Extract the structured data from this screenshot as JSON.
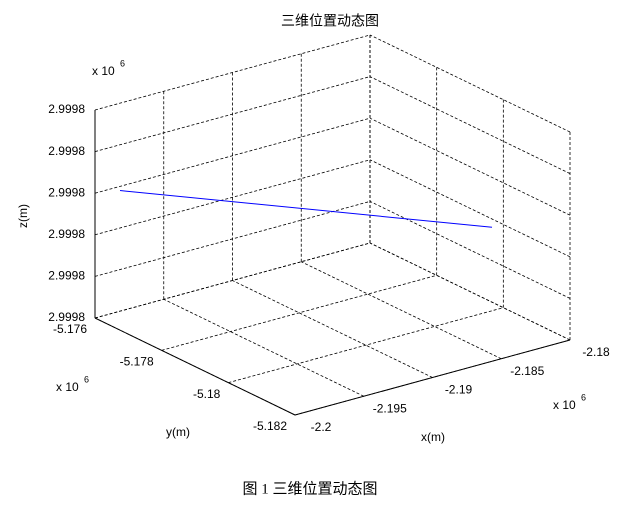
{
  "chart_data": {
    "type": "line3d",
    "title": "三维位置动态图",
    "caption": "图 1 三维位置动态图",
    "xlabel": "x(m)",
    "ylabel": "y(m)",
    "zlabel": "z(m)",
    "exponent": {
      "base": "x 10",
      "power": "6"
    },
    "xlim": [
      -2.2,
      -2.18
    ],
    "xticks": [
      -2.2,
      -2.195,
      -2.19,
      -2.185,
      -2.18
    ],
    "ylim": [
      -5.182,
      -5.176
    ],
    "yticks": [
      -5.176,
      -5.178,
      -5.18,
      -5.182
    ],
    "zlim": [
      2.99978,
      2.99983
    ],
    "zticks": [
      {
        "value": 2.99978,
        "label": "2.9998"
      },
      {
        "value": 2.99979,
        "label": "2.9998"
      },
      {
        "value": 2.9998,
        "label": "2.9998"
      },
      {
        "value": 2.99981,
        "label": "2.9998"
      },
      {
        "value": 2.99982,
        "label": "2.9998"
      },
      {
        "value": 2.99983,
        "label": "2.9998"
      }
    ],
    "grid": true,
    "series": [
      {
        "color": "#0000ff",
        "x": [
          -2.19818,
          -2.18
        ],
        "y": [
          -5.176,
          -5.17966
        ],
        "z": [
          2.999809,
          2.999798
        ]
      }
    ]
  }
}
